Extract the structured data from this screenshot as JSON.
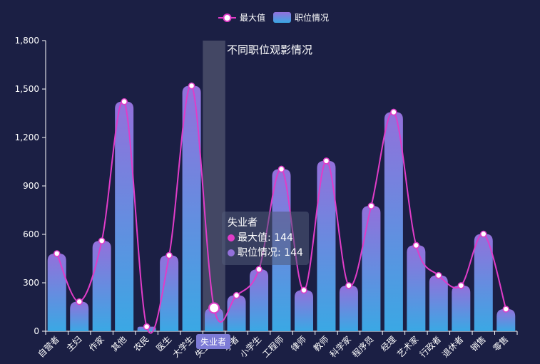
{
  "chart_data": {
    "type": "bar",
    "title": "不同职位观影情况",
    "categories": [
      "自营者",
      "主妇",
      "作家",
      "其他",
      "农民",
      "医生",
      "大学生",
      "失业者",
      "学者",
      "小学生",
      "工程师",
      "律师",
      "教师",
      "科学家",
      "程序员",
      "经理",
      "艺术家",
      "行政者",
      "退休者",
      "销售",
      "零售"
    ],
    "series": [
      {
        "name": "最大值",
        "kind": "line",
        "values": [
          481,
          183,
          560,
          1422,
          28,
          470,
          1520,
          144,
          222,
          383,
          1004,
          254,
          1055,
          283,
          776,
          1357,
          532,
          346,
          283,
          602,
          137
        ]
      },
      {
        "name": "职位情况",
        "kind": "bar",
        "values": [
          481,
          183,
          560,
          1422,
          28,
          470,
          1520,
          144,
          222,
          383,
          1004,
          254,
          1055,
          283,
          776,
          1357,
          532,
          346,
          283,
          602,
          137
        ]
      }
    ],
    "ylim": [
      0,
      1800
    ],
    "yticks": [
      "0",
      "300",
      "600",
      "900",
      "1,200",
      "1,500",
      "1,800"
    ],
    "ytick_values": [
      0,
      300,
      600,
      900,
      1200,
      1500,
      1800
    ],
    "legend_position": "top-center",
    "grid": false,
    "highlighted_category": "失业者",
    "colors": {
      "line": "#e03cc8",
      "bar_top": "#9370db",
      "bar_bottom": "#3aa8e4",
      "background": "#1b1f44",
      "pointer_band": "#4a4f6a"
    }
  },
  "tooltip": {
    "title": "失业者",
    "rows": [
      {
        "label": "最大值: 144",
        "color": "#e03cc8"
      },
      {
        "label": "职位情况: 144",
        "color": "#9370db"
      }
    ]
  },
  "axis_pointer_label": "失业者"
}
